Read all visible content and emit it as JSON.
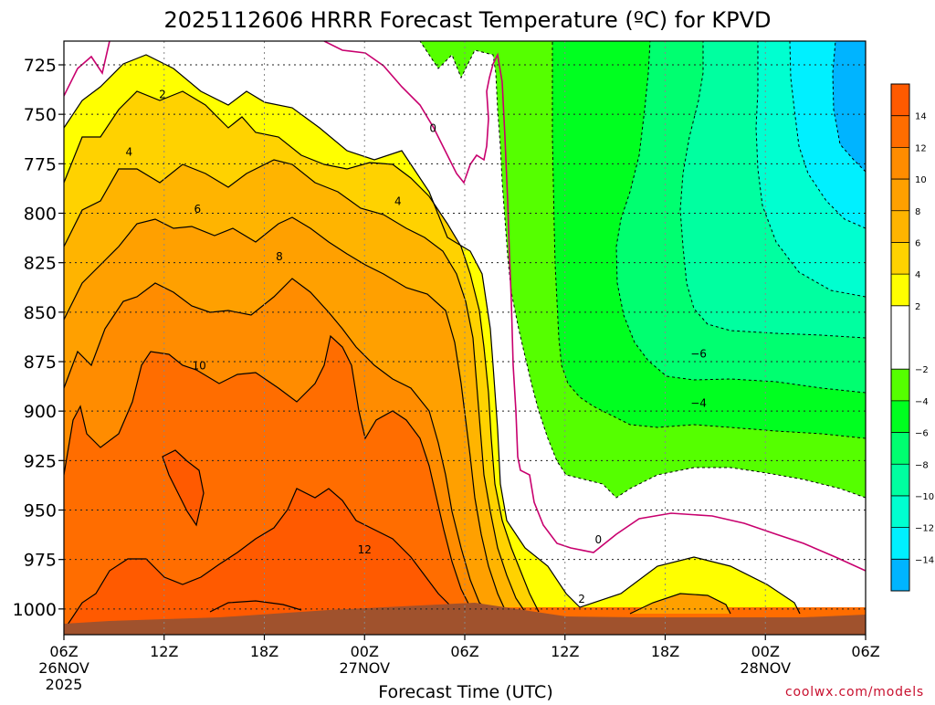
{
  "chart_data": {
    "type": "heatmap",
    "title": "2025112606 HRRR Forecast Temperature (ºC) for KPVD",
    "xlabel": "Forecast Time (UTC)",
    "ylabel": "",
    "credit": "coolwx.com/models",
    "x_ticks": [
      {
        "hour": 0,
        "label": "06Z",
        "date_lines": [
          "26NOV",
          "2025"
        ]
      },
      {
        "hour": 6,
        "label": "12Z",
        "date_lines": []
      },
      {
        "hour": 12,
        "label": "18Z",
        "date_lines": []
      },
      {
        "hour": 18,
        "label": "00Z",
        "date_lines": [
          "27NOV"
        ]
      },
      {
        "hour": 24,
        "label": "06Z",
        "date_lines": []
      },
      {
        "hour": 30,
        "label": "12Z",
        "date_lines": []
      },
      {
        "hour": 36,
        "label": "18Z",
        "date_lines": []
      },
      {
        "hour": 42,
        "label": "00Z",
        "date_lines": [
          "28NOV"
        ]
      },
      {
        "hour": 48,
        "label": "06Z",
        "date_lines": []
      }
    ],
    "xlim_hours": [
      0,
      48
    ],
    "y_ticks": [
      725,
      750,
      775,
      800,
      825,
      850,
      875,
      900,
      925,
      950,
      975,
      1000
    ],
    "ylim_hPa": [
      1013,
      713
    ],
    "grid": true,
    "colorbar": {
      "bins": [
        {
          "from": 14,
          "to": 16,
          "color": "#ff5a00"
        },
        {
          "from": 12,
          "to": 14,
          "color": "#ff6d00"
        },
        {
          "from": 10,
          "to": 12,
          "color": "#ff8c00"
        },
        {
          "from": 8,
          "to": 10,
          "color": "#ffa000"
        },
        {
          "from": 6,
          "to": 8,
          "color": "#ffb400"
        },
        {
          "from": 4,
          "to": 6,
          "color": "#ffd200"
        },
        {
          "from": 2,
          "to": 4,
          "color": "#ffff00"
        },
        {
          "from": -2,
          "to": 2,
          "color": "#ffffff"
        },
        {
          "from": -4,
          "to": -2,
          "color": "#55ff00"
        },
        {
          "from": -6,
          "to": -4,
          "color": "#00ff20"
        },
        {
          "from": -8,
          "to": -6,
          "color": "#00ff70"
        },
        {
          "from": -10,
          "to": -8,
          "color": "#00ffa0"
        },
        {
          "from": -12,
          "to": -10,
          "color": "#00ffd0"
        },
        {
          "from": -14,
          "to": -12,
          "color": "#00f0ff"
        },
        {
          "from": -16,
          "to": -14,
          "color": "#00b4ff"
        }
      ],
      "tick_labels": [
        {
          "value": 14,
          "text": "14"
        },
        {
          "value": 12,
          "text": "12"
        },
        {
          "value": 10,
          "text": "10"
        },
        {
          "value": 8,
          "text": "8"
        },
        {
          "value": 6,
          "text": "6"
        },
        {
          "value": 4,
          "text": "4"
        },
        {
          "value": 2,
          "text": "2"
        },
        {
          "value": -2,
          "text": "−2"
        },
        {
          "value": -4,
          "text": "−4"
        },
        {
          "value": -6,
          "text": "−6"
        },
        {
          "value": -8,
          "text": "−8"
        },
        {
          "value": -10,
          "text": "−10"
        },
        {
          "value": -12,
          "text": "−12"
        },
        {
          "value": -14,
          "text": "−14"
        }
      ]
    },
    "contour_labels": [
      {
        "text": "2",
        "hour": 5.9,
        "hPa": 740
      },
      {
        "text": "4",
        "hour": 3.9,
        "hPa": 769
      },
      {
        "text": "6",
        "hour": 8.0,
        "hPa": 798
      },
      {
        "text": "8",
        "hour": 12.9,
        "hPa": 822
      },
      {
        "text": "10",
        "hour": 8.1,
        "hPa": 877
      },
      {
        "text": "12",
        "hour": 18.0,
        "hPa": 970
      },
      {
        "text": "4",
        "hour": 20.0,
        "hPa": 794
      },
      {
        "text": "0",
        "hour": 22.1,
        "hPa": 757
      },
      {
        "text": "0",
        "hour": 32.0,
        "hPa": 965
      },
      {
        "text": "2",
        "hour": 31.0,
        "hPa": 995
      },
      {
        "text": "−6",
        "hour": 38.0,
        "hPa": 871
      },
      {
        "text": "−4",
        "hour": 38.0,
        "hPa": 896
      }
    ]
  }
}
